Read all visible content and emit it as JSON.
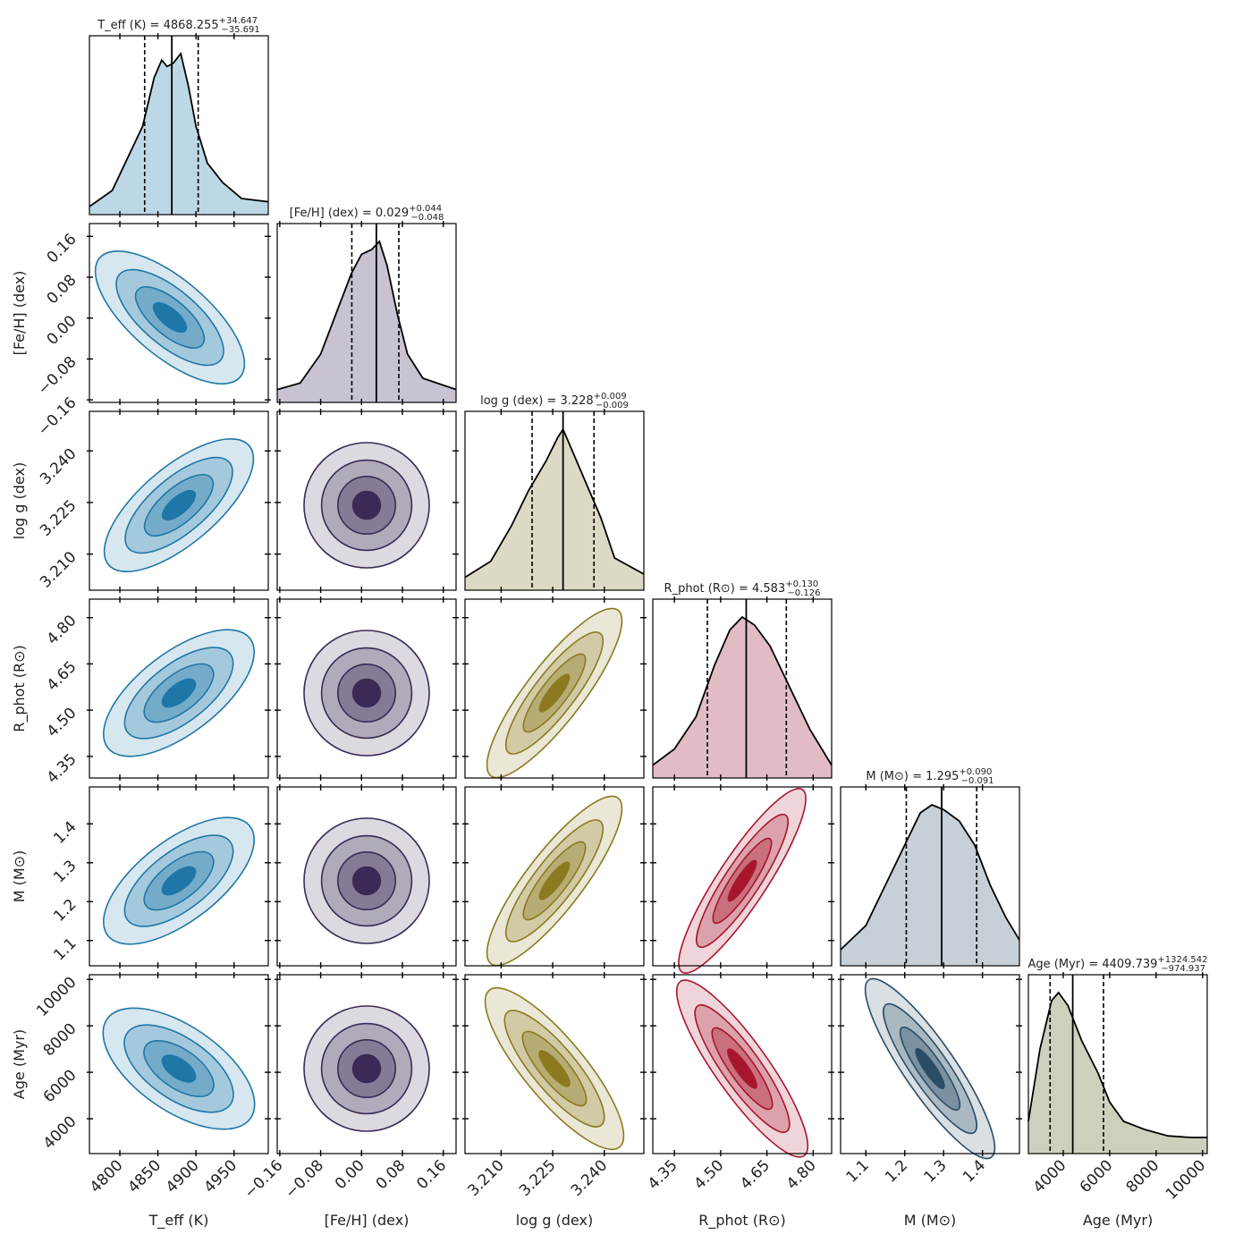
{
  "chart_data": {
    "type": "corner",
    "parameters": [
      {
        "key": "teff",
        "axis_label": "T_eff (K)",
        "title_name": "T_eff (K)",
        "median": "4868.255",
        "plus": "+34.647",
        "minus": "−35.691",
        "range": [
          4760,
          4995
        ],
        "ticks": [
          4800,
          4850,
          4900,
          4950
        ],
        "tick_labels": [
          "4800",
          "4850",
          "4900",
          "4950"
        ],
        "color": "#1f77a8",
        "fill": "#bcd8e6"
      },
      {
        "key": "feh",
        "axis_label": "[Fe/H] (dex)",
        "title_name": "[Fe/H] (dex)",
        "median": "0.029",
        "plus": "+0.044",
        "minus": "−0.048",
        "range": [
          -0.165,
          0.185
        ],
        "ticks": [
          -0.16,
          -0.08,
          0.0,
          0.08,
          0.16
        ],
        "tick_labels": [
          "−0.16",
          "−0.08",
          "0.00",
          "0.08",
          "0.16"
        ],
        "color": "#3b2a55",
        "fill": "#c8c2d1"
      },
      {
        "key": "logg",
        "axis_label": "log g (dex)",
        "title_name": "log g (dex)",
        "median": "3.228",
        "plus": "+0.009",
        "minus": "−0.009",
        "range": [
          3.1995,
          3.2515
        ],
        "ticks": [
          3.21,
          3.225,
          3.24
        ],
        "tick_labels": [
          "3.210",
          "3.225",
          "3.240"
        ],
        "color": "#8b7a1f",
        "fill": "#dcdac4"
      },
      {
        "key": "rphot",
        "axis_label": "R_phot (R⊙)",
        "title_name": "R_phot (R⊙)",
        "median": "4.583",
        "plus": "+0.130",
        "minus": "−0.126",
        "range": [
          4.28,
          4.86
        ],
        "ticks": [
          4.35,
          4.5,
          4.65,
          4.8
        ],
        "tick_labels": [
          "4.35",
          "4.50",
          "4.65",
          "4.80"
        ],
        "color": "#a8162e",
        "fill": "#e2bcc5"
      },
      {
        "key": "mass",
        "axis_label": "M (M⊙)",
        "title_name": "M (M⊙)",
        "median": "1.295",
        "plus": "+0.090",
        "minus": "−0.091",
        "range": [
          1.035,
          1.495
        ],
        "ticks": [
          1.1,
          1.2,
          1.3,
          1.4
        ],
        "tick_labels": [
          "1.1",
          "1.2",
          "1.3",
          "1.4"
        ],
        "color": "#2a4d66",
        "fill": "#c6d0d6"
      },
      {
        "key": "age",
        "axis_label": "Age (Myr)",
        "title_name": "Age (Myr)",
        "median": "4409.739",
        "plus": "+1324.542",
        "minus": "−974.937",
        "range": [
          2500,
          10200
        ],
        "ticks": [
          4000,
          6000,
          8000,
          10000
        ],
        "tick_labels": [
          "4000",
          "6000",
          "8000",
          "10000"
        ],
        "color": "#8a8a6a",
        "fill": "#cfcfbe"
      }
    ],
    "marginals": {
      "teff": {
        "x": [
          4760,
          4790,
          4810,
          4830,
          4845,
          4855,
          4862,
          4870,
          4880,
          4890,
          4900,
          4915,
          4935,
          4960,
          4995
        ],
        "y": [
          0.05,
          0.15,
          0.35,
          0.55,
          0.85,
          0.96,
          0.92,
          0.94,
          1.0,
          0.8,
          0.55,
          0.32,
          0.2,
          0.1,
          0.08
        ]
      },
      "feh": {
        "x": [
          -0.165,
          -0.12,
          -0.08,
          -0.05,
          -0.02,
          0.0,
          0.02,
          0.035,
          0.05,
          0.07,
          0.09,
          0.12,
          0.185
        ],
        "y": [
          0.08,
          0.12,
          0.3,
          0.55,
          0.8,
          0.92,
          0.95,
          1.0,
          0.85,
          0.55,
          0.3,
          0.15,
          0.08
        ]
      },
      "logg": {
        "x": [
          3.1995,
          3.207,
          3.213,
          3.218,
          3.223,
          3.2265,
          3.228,
          3.231,
          3.235,
          3.239,
          3.243,
          3.2515
        ],
        "y": [
          0.08,
          0.18,
          0.4,
          0.62,
          0.8,
          0.95,
          1.0,
          0.85,
          0.65,
          0.45,
          0.2,
          0.1
        ]
      },
      "rphot": {
        "x": [
          4.28,
          4.35,
          4.42,
          4.48,
          4.53,
          4.57,
          4.61,
          4.66,
          4.72,
          4.79,
          4.86
        ],
        "y": [
          0.08,
          0.18,
          0.38,
          0.7,
          0.92,
          1.0,
          0.95,
          0.82,
          0.58,
          0.3,
          0.08
        ]
      },
      "mass": {
        "x": [
          1.035,
          1.1,
          1.15,
          1.2,
          1.24,
          1.27,
          1.3,
          1.34,
          1.38,
          1.42,
          1.46,
          1.495
        ],
        "y": [
          0.1,
          0.25,
          0.5,
          0.75,
          0.95,
          1.0,
          0.97,
          0.9,
          0.75,
          0.5,
          0.3,
          0.16
        ]
      },
      "age": {
        "x": [
          2500,
          3000,
          3500,
          3800,
          4200,
          4800,
          5500,
          6000,
          6600,
          7500,
          8500,
          9500,
          10200
        ],
        "y": [
          0.2,
          0.65,
          0.95,
          1.0,
          0.92,
          0.7,
          0.5,
          0.32,
          0.2,
          0.15,
          0.11,
          0.1,
          0.1
        ]
      }
    },
    "x_axis_labels": [
      "T_eff (K)",
      "[Fe/H] (dex)",
      "log g (dex)",
      "R_phot (R⊙)",
      "M (M⊙)",
      "Age (Myr)"
    ],
    "y_axis_labels": [
      "[Fe/H] (dex)",
      "log g (dex)",
      "R_phot (R⊙)",
      "M (M⊙)",
      "Age (Myr)"
    ]
  }
}
